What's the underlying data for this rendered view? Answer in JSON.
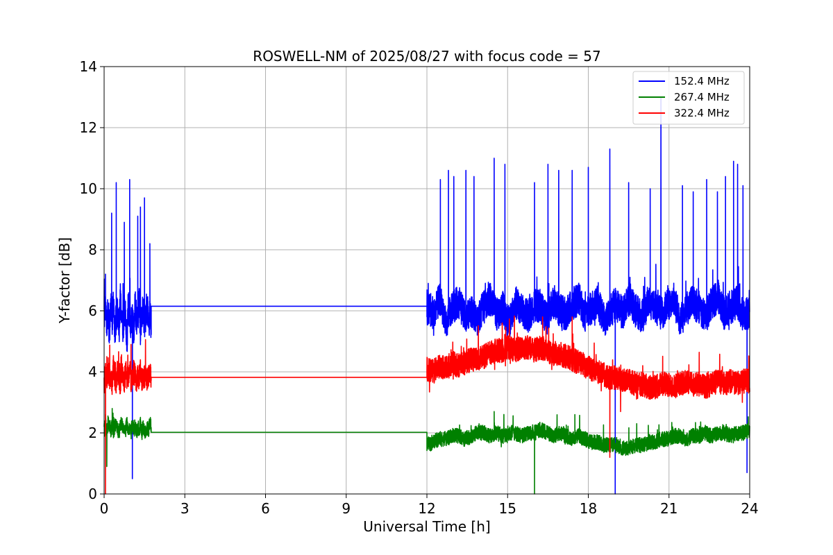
{
  "chart_data": {
    "type": "line",
    "title": "ROSWELL-NM of 2025/08/27 with focus code = 57",
    "xlabel": "Universal Time [h]",
    "ylabel": "Y-factor [dB]",
    "xlim": [
      0,
      24
    ],
    "ylim": [
      0,
      14
    ],
    "xticks": [
      0,
      3,
      6,
      9,
      12,
      15,
      18,
      21,
      24
    ],
    "yticks": [
      0,
      2,
      4,
      6,
      8,
      10,
      12,
      14
    ],
    "grid": true,
    "legend_position": "top-right",
    "gap": [
      1.75,
      12.0
    ],
    "series": [
      {
        "name": "152.4 MHz",
        "color": "#0000ff",
        "gap_value": 6.15,
        "base": 5.8,
        "noise": 0.55,
        "peaks": [
          [
            0.05,
            7.2
          ],
          [
            0.28,
            9.2
          ],
          [
            0.45,
            10.2
          ],
          [
            0.75,
            8.9
          ],
          [
            0.95,
            10.3
          ],
          [
            1.05,
            0.5
          ],
          [
            1.25,
            9.1
          ],
          [
            1.35,
            9.4
          ],
          [
            1.5,
            9.7
          ],
          [
            1.7,
            8.2
          ],
          [
            12.05,
            6.9
          ],
          [
            12.5,
            10.3
          ],
          [
            12.8,
            10.6
          ],
          [
            13.0,
            10.4
          ],
          [
            13.45,
            10.6
          ],
          [
            13.75,
            10.4
          ],
          [
            14.5,
            11.0
          ],
          [
            14.9,
            10.8
          ],
          [
            16.0,
            10.2
          ],
          [
            16.5,
            10.8
          ],
          [
            16.9,
            10.6
          ],
          [
            17.4,
            10.6
          ],
          [
            18.0,
            10.7
          ],
          [
            18.8,
            11.3
          ],
          [
            19.0,
            0.0
          ],
          [
            19.5,
            10.2
          ],
          [
            20.3,
            10.0
          ],
          [
            20.7,
            13.0
          ],
          [
            21.5,
            10.1
          ],
          [
            21.9,
            9.9
          ],
          [
            22.4,
            10.3
          ],
          [
            22.8,
            9.9
          ],
          [
            23.1,
            10.4
          ],
          [
            23.4,
            10.9
          ],
          [
            23.55,
            10.8
          ],
          [
            23.75,
            10.1
          ],
          [
            23.9,
            0.7
          ]
        ],
        "segments": [
          {
            "start": 0.0,
            "end": 1.75,
            "values": [
              5.9,
              6.3,
              5.6,
              6.0,
              5.4,
              6.1,
              5.7,
              6.2,
              5.3,
              5.8,
              6.0,
              5.5,
              6.2,
              5.9,
              5.4,
              6.1,
              5.7,
              5.0,
              6.3,
              5.8,
              5.5,
              6.0,
              5.2,
              6.2,
              5.8,
              5.6,
              6.3,
              5.4,
              5.9,
              6.1,
              5.6,
              5.9,
              6.2,
              5.7,
              6.0,
              5.5
            ]
          },
          {
            "start": 12.0,
            "end": 24.0,
            "values": [
              6.2,
              5.9,
              6.4,
              5.6,
              6.1,
              6.3,
              5.8,
              6.0,
              5.7,
              6.2,
              6.4,
              5.9,
              6.1,
              5.6,
              6.3,
              6.0,
              5.8,
              6.2,
              6.1,
              5.7,
              6.3,
              6.0,
              5.9,
              6.2,
              6.4,
              5.8,
              6.1,
              6.3,
              5.7,
              6.0,
              6.2,
              5.9,
              6.4,
              6.0,
              5.8,
              6.3,
              6.1,
              5.9,
              6.2,
              6.4,
              5.7,
              6.0,
              6.3,
              6.1,
              5.8,
              6.2,
              6.5,
              5.9,
              6.1,
              6.3,
              5.8,
              6.0
            ]
          }
        ]
      },
      {
        "name": "267.4 MHz",
        "color": "#008000",
        "gap_value": 2.02,
        "base": 2.0,
        "noise": 0.25,
        "peaks": [
          [
            0.05,
            2.6
          ],
          [
            0.1,
            0.9
          ],
          [
            0.3,
            2.8
          ],
          [
            14.5,
            2.7
          ],
          [
            16.0,
            0.0
          ],
          [
            17.5,
            2.6
          ]
        ],
        "segments": [
          {
            "start": 0.0,
            "end": 1.75,
            "values": [
              2.1,
              2.3,
              2.0,
              2.4,
              2.2,
              2.1,
              2.3,
              2.0,
              2.2,
              2.4,
              2.1,
              2.0,
              2.2,
              2.3,
              2.1,
              2.0,
              2.2,
              2.3,
              2.1,
              2.2,
              2.0,
              2.3,
              2.1,
              2.2,
              2.0,
              2.2,
              2.1,
              2.3,
              2.0,
              2.2,
              2.1,
              2.0,
              2.2,
              2.1,
              2.3,
              2.2
            ]
          },
          {
            "start": 12.0,
            "end": 24.0,
            "values": [
              1.6,
              1.7,
              1.8,
              1.8,
              1.9,
              1.9,
              1.8,
              1.9,
              2.0,
              2.0,
              1.9,
              2.0,
              1.9,
              2.0,
              2.0,
              1.9,
              2.0,
              2.0,
              2.1,
              2.0,
              1.9,
              2.0,
              1.9,
              1.8,
              1.9,
              1.8,
              1.7,
              1.7,
              1.6,
              1.6,
              1.6,
              1.5,
              1.5,
              1.6,
              1.6,
              1.7,
              1.7,
              1.8,
              1.8,
              1.9,
              1.9,
              1.8,
              1.9,
              1.9,
              2.0,
              1.9,
              2.0,
              2.0,
              1.9,
              2.0,
              2.0,
              2.1
            ]
          }
        ]
      },
      {
        "name": "322.4 MHz",
        "color": "#ff0000",
        "gap_value": 3.82,
        "base": 3.9,
        "noise": 0.4,
        "peaks": [
          [
            0.05,
            0.0
          ],
          [
            0.1,
            4.5
          ],
          [
            0.35,
            4.4
          ],
          [
            1.0,
            4.9
          ],
          [
            14.8,
            5.6
          ],
          [
            16.3,
            5.8
          ],
          [
            17.4,
            5.8
          ],
          [
            18.8,
            1.2
          ],
          [
            19.2,
            2.7
          ]
        ],
        "segments": [
          {
            "start": 0.0,
            "end": 1.75,
            "values": [
              3.6,
              4.0,
              3.7,
              4.1,
              3.8,
              3.9,
              3.6,
              4.2,
              3.8,
              3.7,
              4.0,
              3.9,
              3.6,
              4.1,
              3.8,
              3.7,
              4.0,
              3.8,
              3.9,
              4.1,
              3.7,
              3.8,
              4.0,
              3.9,
              3.6,
              3.9,
              3.8,
              4.1,
              3.7,
              3.9,
              3.8,
              4.0,
              3.7,
              3.9,
              4.0,
              3.8
            ]
          },
          {
            "start": 12.0,
            "end": 24.0,
            "values": [
              4.1,
              4.0,
              4.2,
              4.1,
              4.3,
              4.2,
              4.3,
              4.4,
              4.4,
              4.5,
              4.6,
              4.7,
              4.7,
              4.8,
              4.7,
              4.8,
              4.8,
              4.7,
              4.8,
              4.7,
              4.6,
              4.6,
              4.5,
              4.4,
              4.3,
              4.2,
              4.1,
              4.0,
              3.9,
              3.8,
              3.8,
              3.7,
              3.7,
              3.6,
              3.6,
              3.5,
              3.5,
              3.6,
              3.6,
              3.5,
              3.6,
              3.7,
              3.6,
              3.6,
              3.5,
              3.6,
              3.7,
              3.6,
              3.7,
              3.6,
              3.7,
              3.7
            ]
          }
        ]
      }
    ]
  }
}
